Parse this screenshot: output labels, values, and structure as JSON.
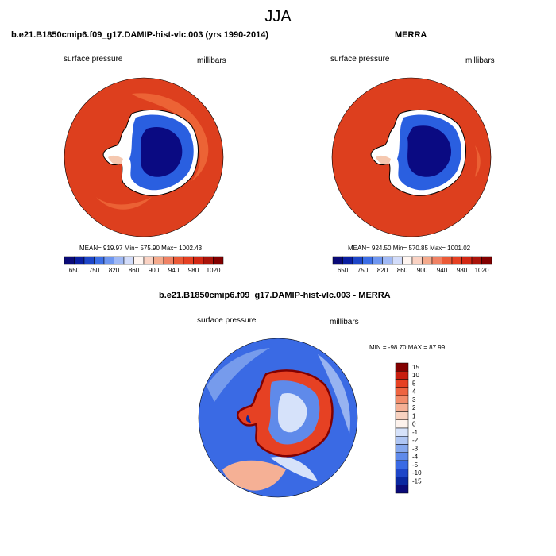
{
  "title": "JJA",
  "panels": [
    {
      "title": "b.e21.B1850cmip6.f09_g17.DAMIP-hist-vlc.003 (yrs 1990-2014)",
      "field_label": "surface pressure",
      "units": "millibars",
      "stats": "MEAN= 919.97   Min= 575.90   Max= 1002.43"
    },
    {
      "title": "MERRA",
      "field_label": "surface pressure",
      "units": "millibars",
      "stats": "MEAN= 924.50   Min= 570.85   Max= 1001.02"
    },
    {
      "title": "b.e21.B1850cmip6.f09_g17.DAMIP-hist-vlc.003 - MERRA",
      "field_label": "surface pressure",
      "units": "millibars",
      "stats": "MIN = -98.70  MAX =  87.99"
    }
  ],
  "colorbar_abs": {
    "ticks": [
      "650",
      "750",
      "820",
      "860",
      "900",
      "940",
      "980",
      "1020"
    ],
    "colors": [
      "#0a0a78",
      "#0a1ea0",
      "#1e46c8",
      "#3c6ee6",
      "#6e96f0",
      "#a0b9f5",
      "#d2dcfa",
      "#fff5f0",
      "#fad2c3",
      "#f5aa8c",
      "#f08264",
      "#eb5a37",
      "#e64123",
      "#d22814",
      "#aa140a",
      "#820000"
    ]
  },
  "colorbar_diff": {
    "ticks": [
      "15",
      "10",
      "5",
      "4",
      "3",
      "2",
      "1",
      "0",
      "-1",
      "-2",
      "-3",
      "-4",
      "-5",
      "-10",
      "-15"
    ],
    "colors": [
      "#820000",
      "#c81e0f",
      "#e64123",
      "#ee6440",
      "#f28c6a",
      "#f5b095",
      "#f8d2c0",
      "#fdf2ec",
      "#d6e2fa",
      "#afc6f4",
      "#86a8ee",
      "#5f8aea",
      "#3a6ae4",
      "#1e46c8",
      "#0a28a0",
      "#0a0a78"
    ]
  }
}
